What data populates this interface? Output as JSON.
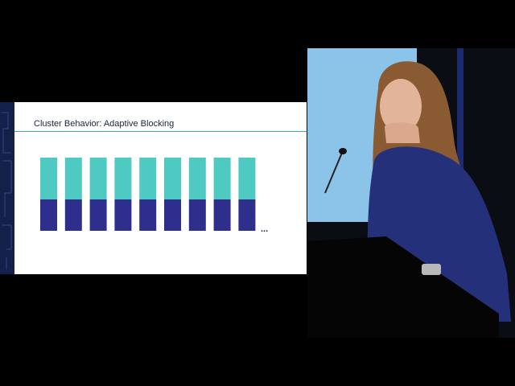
{
  "slide": {
    "title": "Cluster Behavior: Adaptive Blocking",
    "ellipsis": "..."
  }
}
